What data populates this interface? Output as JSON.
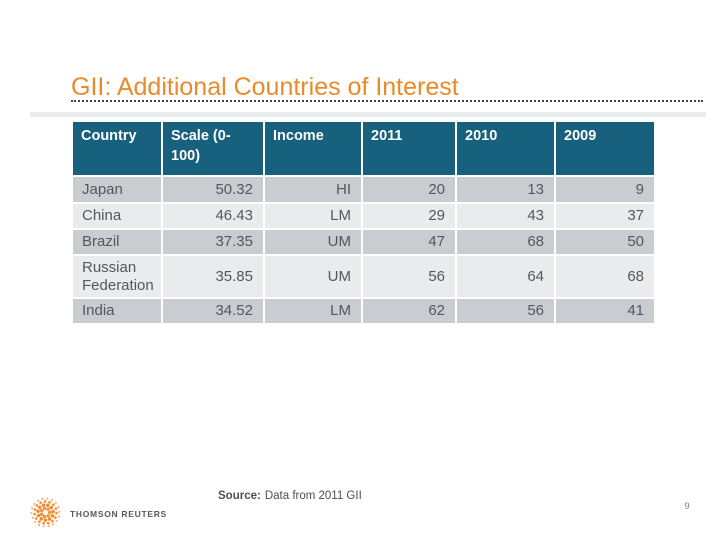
{
  "slide": {
    "title": "GII: Additional Countries of Interest"
  },
  "table": {
    "columns": [
      "Country",
      "Scale (0-100)",
      "Income",
      "2011",
      "2010",
      "2009"
    ],
    "rows": [
      {
        "country": "Japan",
        "scale": "50.32",
        "income": "HI",
        "y2011": "20",
        "y2010": "13",
        "y2009": "9"
      },
      {
        "country": "China",
        "scale": "46.43",
        "income": "LM",
        "y2011": "29",
        "y2010": "43",
        "y2009": "37"
      },
      {
        "country": "Brazil",
        "scale": "37.35",
        "income": "UM",
        "y2011": "47",
        "y2010": "68",
        "y2009": "50"
      },
      {
        "country": "Russian Federation",
        "scale": "35.85",
        "income": "UM",
        "y2011": "56",
        "y2010": "64",
        "y2009": "68"
      },
      {
        "country": "India",
        "scale": "34.52",
        "income": "LM",
        "y2011": "62",
        "y2010": "56",
        "y2009": "41"
      }
    ]
  },
  "footer": {
    "source_label": "Source:",
    "source_text": "Data from 2011 GII",
    "logo_text": "THOMSON REUTERS",
    "page_number": "9"
  },
  "colors": {
    "title_orange": "#EB8A2B",
    "header_teal": "#17607E",
    "row_dark": "#C9CDD2",
    "row_light": "#E9EBED",
    "body_text": "#54575C",
    "divider": "#39444E",
    "logo_orange": "#EE8A28"
  }
}
